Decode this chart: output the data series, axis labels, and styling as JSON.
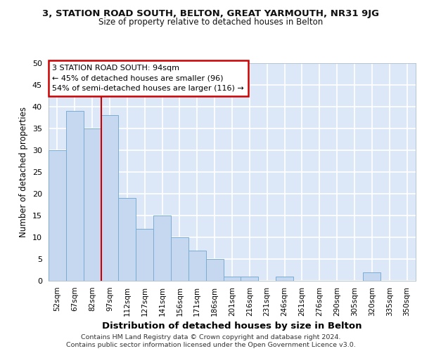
{
  "title1": "3, STATION ROAD SOUTH, BELTON, GREAT YARMOUTH, NR31 9JG",
  "title2": "Size of property relative to detached houses in Belton",
  "xlabel": "Distribution of detached houses by size in Belton",
  "ylabel": "Number of detached properties",
  "bar_labels": [
    "52sqm",
    "67sqm",
    "82sqm",
    "97sqm",
    "112sqm",
    "127sqm",
    "141sqm",
    "156sqm",
    "171sqm",
    "186sqm",
    "201sqm",
    "216sqm",
    "231sqm",
    "246sqm",
    "261sqm",
    "276sqm",
    "290sqm",
    "305sqm",
    "320sqm",
    "335sqm",
    "350sqm"
  ],
  "bar_values": [
    30,
    39,
    35,
    38,
    19,
    12,
    15,
    10,
    7,
    5,
    1,
    1,
    0,
    1,
    0,
    0,
    0,
    0,
    2,
    0,
    0
  ],
  "bar_color": "#c5d8f0",
  "bar_edge_color": "#7aadd4",
  "background_color": "#dce8f8",
  "grid_color": "#ffffff",
  "annotation_box_text": "3 STATION ROAD SOUTH: 94sqm\n← 45% of detached houses are smaller (96)\n54% of semi-detached houses are larger (116) →",
  "annotation_box_color": "#ffffff",
  "annotation_box_edge_color": "#cc0000",
  "red_line_x": 3.0,
  "ylim": [
    0,
    50
  ],
  "yticks": [
    0,
    5,
    10,
    15,
    20,
    25,
    30,
    35,
    40,
    45,
    50
  ],
  "footer_line1": "Contains HM Land Registry data © Crown copyright and database right 2024.",
  "footer_line2": "Contains public sector information licensed under the Open Government Licence v3.0."
}
